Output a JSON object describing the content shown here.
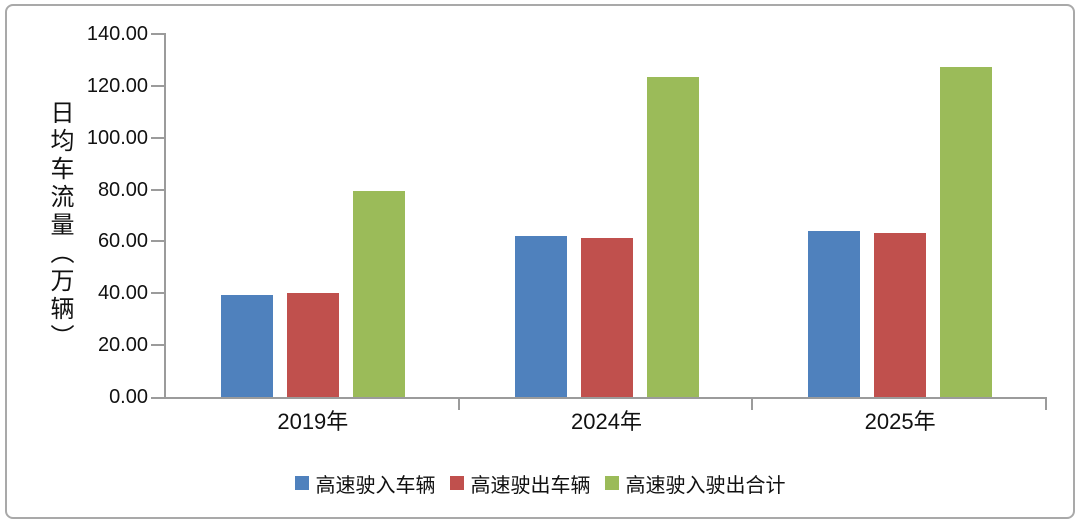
{
  "chart_data": {
    "type": "bar",
    "title": "",
    "categories": [
      "2019年",
      "2024年",
      "2025年"
    ],
    "series": [
      {
        "name": "高速驶入车辆",
        "color": "#4f81bd",
        "values": [
          39.5,
          62.1,
          63.9
        ]
      },
      {
        "name": "高速驶出车辆",
        "color": "#c0504d",
        "values": [
          40.0,
          61.4,
          63.2
        ]
      },
      {
        "name": "高速驶入驶出合计",
        "color": "#9bbb59",
        "values": [
          79.5,
          123.5,
          127.1
        ]
      }
    ],
    "xlabel": "",
    "ylabel": "日均车流量（万辆）",
    "ylim": [
      0,
      140
    ],
    "ytick_step": 20,
    "ytick_labels": [
      "0.00",
      "20.00",
      "40.00",
      "60.00",
      "80.00",
      "100.00",
      "120.00",
      "140.00"
    ],
    "grid": false,
    "legend_position": "bottom",
    "axis_color": "#9b9b9b",
    "text_color": "#111111",
    "frame_border_color": "#a9a9a9",
    "background_color": "#ffffff"
  }
}
